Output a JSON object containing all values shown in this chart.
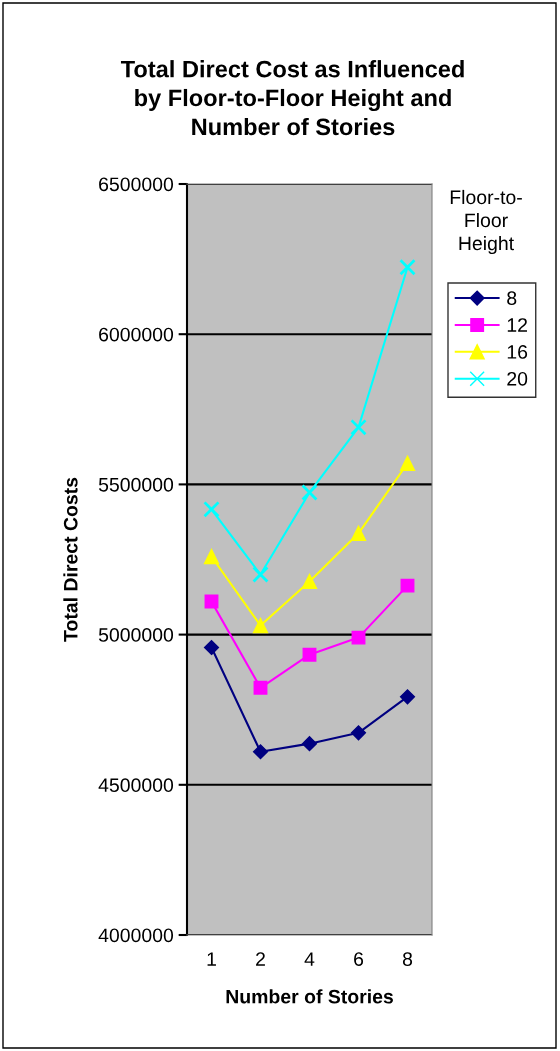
{
  "chart_data": {
    "type": "line",
    "title": "Total Direct Cost as Influenced\nby Floor-to-Floor Height and\nNumber of Stories",
    "xlabel": "Number of Stories",
    "ylabel": "Total Direct Costs",
    "legend_title": "Floor-to-\nFloor\nHeight",
    "categories": [
      "1",
      "2",
      "4",
      "6",
      "8"
    ],
    "series": [
      {
        "name": "8",
        "color": "#000080",
        "marker": "diamond",
        "values": [
          4957000,
          4610000,
          4637000,
          4673000,
          4793000
        ]
      },
      {
        "name": "12",
        "color": "#ff00ff",
        "marker": "square",
        "values": [
          5110000,
          4823000,
          4933000,
          4990000,
          5163000
        ]
      },
      {
        "name": "16",
        "color": "#ffff00",
        "marker": "triangle",
        "values": [
          5260000,
          5030000,
          5177000,
          5337000,
          5570000
        ]
      },
      {
        "name": "20",
        "color": "#00ffff",
        "marker": "cross",
        "values": [
          5417000,
          5200000,
          5473000,
          5690000,
          6223000
        ]
      }
    ],
    "ylim": [
      4000000,
      6500000
    ],
    "yticks": [
      4000000,
      4500000,
      5000000,
      5500000,
      6000000,
      6500000
    ],
    "grid": "y",
    "legend": "right"
  }
}
